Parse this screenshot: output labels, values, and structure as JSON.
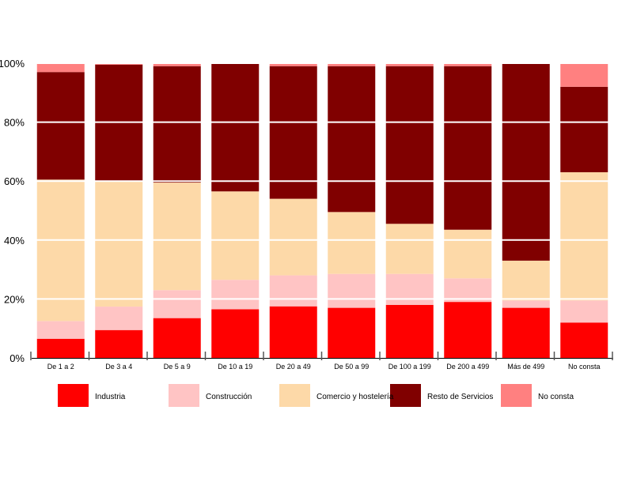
{
  "chart_data": {
    "type": "bar",
    "stacked": true,
    "percent": true,
    "categories": [
      "De 1 a 2",
      "De 3 a 4",
      "De 5 a 9",
      "De 10 a 19",
      "De 20 a 49",
      "De 50 a 99",
      "De 100 a 199",
      "De 200 a 499",
      "Más de 499",
      "No consta"
    ],
    "series": [
      {
        "name": "Industria",
        "color": "#ff0000",
        "values": [
          6.5,
          9.5,
          13.5,
          16.5,
          17.5,
          17,
          18,
          19,
          17,
          12
        ]
      },
      {
        "name": "Construcción",
        "color": "#ffc4c4",
        "values": [
          6,
          8,
          9.5,
          10,
          10.5,
          11.5,
          10.5,
          8,
          2.5,
          7.5
        ]
      },
      {
        "name": "Comercio y hostelería",
        "color": "#fdd9a8",
        "values": [
          48,
          43,
          36.5,
          30,
          26,
          21,
          17,
          16.5,
          13.5,
          43.5
        ]
      },
      {
        "name": "Resto de Servicios",
        "color": "#800000",
        "values": [
          36.5,
          39.5,
          39.5,
          43.5,
          45,
          49.5,
          53.5,
          55.5,
          67,
          29
        ]
      },
      {
        "name": "No consta",
        "color": "#ff8080",
        "values": [
          3,
          0.5,
          1,
          0,
          1,
          1,
          1,
          1,
          0,
          8
        ]
      }
    ],
    "y_ticks": [
      "0%",
      "20%",
      "40%",
      "60%",
      "80%",
      "100%"
    ],
    "ylim": [
      0,
      100
    ],
    "grid": true,
    "legend_position": "bottom"
  }
}
